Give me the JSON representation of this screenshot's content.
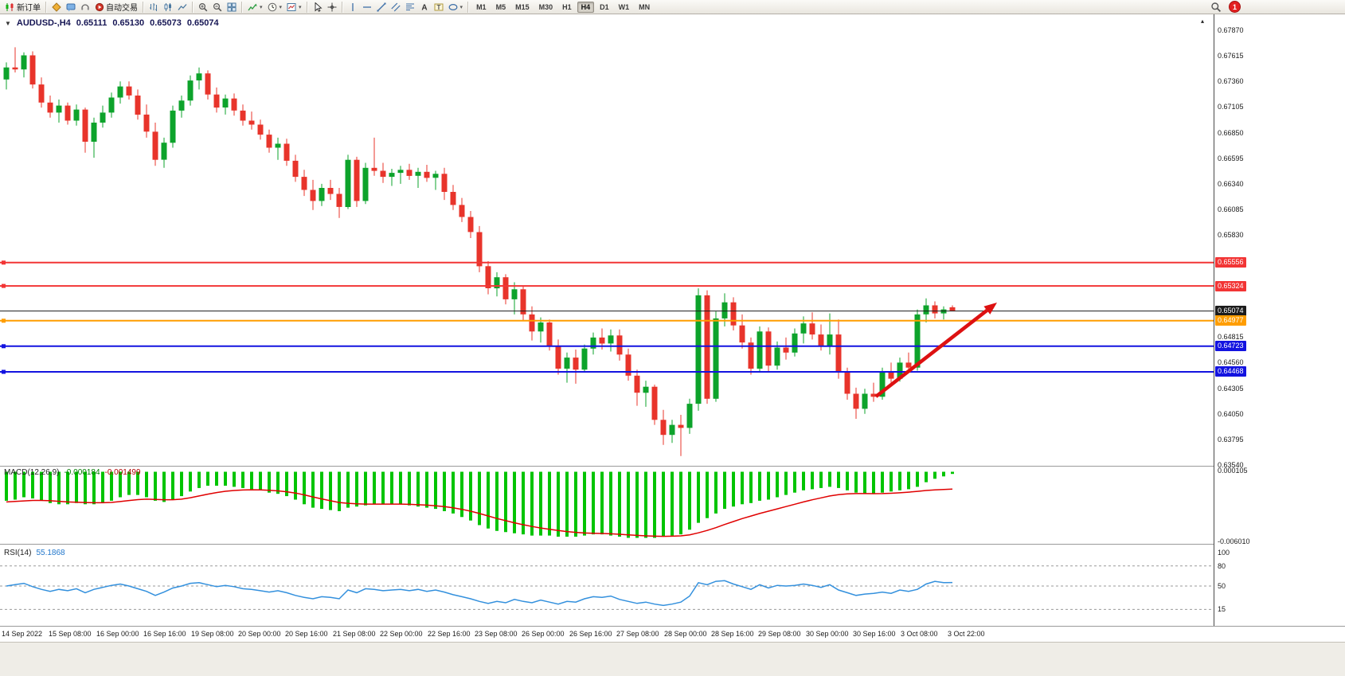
{
  "toolbar": {
    "items": [
      {
        "type": "button",
        "name": "new-order",
        "icon": "new-order",
        "label": "新订单"
      },
      {
        "type": "sep"
      },
      {
        "type": "button",
        "name": "mql5-community",
        "icon": "diamond"
      },
      {
        "type": "button",
        "name": "messages",
        "icon": "bubble"
      },
      {
        "type": "button",
        "name": "support",
        "icon": "headset"
      },
      {
        "type": "button",
        "name": "autotrading",
        "icon": "autotrade",
        "label": "自动交易"
      },
      {
        "type": "sep"
      },
      {
        "type": "button",
        "name": "chart-bars",
        "icon": "bars"
      },
      {
        "type": "button",
        "name": "chart-candles",
        "icon": "candles"
      },
      {
        "type": "button",
        "name": "chart-line",
        "icon": "line"
      },
      {
        "type": "sep"
      },
      {
        "type": "button",
        "name": "zoom-in",
        "icon": "zoom-in"
      },
      {
        "type": "button",
        "name": "zoom-out",
        "icon": "zoom-out"
      },
      {
        "type": "button",
        "name": "tile-windows",
        "icon": "tile"
      },
      {
        "type": "sep"
      },
      {
        "type": "button",
        "name": "indicators",
        "icon": "indicator",
        "dropdown": true
      },
      {
        "type": "button",
        "name": "periods",
        "icon": "clock",
        "dropdown": true
      },
      {
        "type": "button",
        "name": "templates",
        "icon": "template",
        "dropdown": true
      },
      {
        "type": "sep"
      },
      {
        "type": "button",
        "name": "cursor",
        "icon": "cursor"
      },
      {
        "type": "button",
        "name": "crosshair",
        "icon": "crosshair"
      },
      {
        "type": "sep"
      },
      {
        "type": "button",
        "name": "vertical-line",
        "icon": "vline"
      },
      {
        "type": "button",
        "name": "horizontal-line",
        "icon": "hline"
      },
      {
        "type": "button",
        "name": "trendline",
        "icon": "trendline"
      },
      {
        "type": "button",
        "name": "equidistant-channel",
        "icon": "channel"
      },
      {
        "type": "button",
        "name": "fibonacci",
        "icon": "fibo"
      },
      {
        "type": "button",
        "name": "text",
        "icon": "text-a"
      },
      {
        "type": "button",
        "name": "text-label",
        "icon": "text-t"
      },
      {
        "type": "button",
        "name": "shapes",
        "icon": "shapes",
        "dropdown": true
      },
      {
        "type": "sep"
      }
    ],
    "timeframes": [
      "M1",
      "M5",
      "M15",
      "M30",
      "H1",
      "H4",
      "D1",
      "W1",
      "MN"
    ],
    "active_timeframe": "H4",
    "dropdown_glyph": "▾",
    "notification_badge": "1"
  },
  "chart_header": {
    "collapse_icon": "▼",
    "symbol_period": "AUDUSD-,H4",
    "open": "0.65111",
    "high": "0.65130",
    "low": "0.65073",
    "close": "0.65074",
    "autoscroll_icon": "▴"
  },
  "price_axis": {
    "ticks": [
      "0.67870",
      "0.67615",
      "0.67360",
      "0.67105",
      "0.66850",
      "0.66595",
      "0.66340",
      "0.66085",
      "0.65830",
      "0.64815",
      "0.64560",
      "0.64305",
      "0.64050",
      "0.63795",
      "0.63540"
    ]
  },
  "time_axis": {
    "labels": [
      "14 Sep 2022",
      "15 Sep 08:00",
      "16 Sep 00:00",
      "16 Sep 16:00",
      "19 Sep 08:00",
      "20 Sep 00:00",
      "20 Sep 16:00",
      "21 Sep 08:00",
      "22 Sep 00:00",
      "22 Sep 16:00",
      "23 Sep 08:00",
      "26 Sep 00:00",
      "26 Sep 16:00",
      "27 Sep 08:00",
      "28 Sep 00:00",
      "28 Sep 16:00",
      "29 Sep 08:00",
      "30 Sep 00:00",
      "30 Sep 16:00",
      "3 Oct 08:00",
      "3 Oct 22:00"
    ]
  },
  "chart_data": {
    "type": "candlestick",
    "symbol": "AUDUSD-",
    "timeframe": "H4",
    "title": "AUDUSD-,H4 0.65111 0.65130 0.65073 0.65074",
    "ylim": [
      0.6354,
      0.6787
    ],
    "bull_color": "#0da32b",
    "bear_color": "#e8342b",
    "candles": [
      [
        0.6738,
        0.6755,
        0.6728,
        0.675
      ],
      [
        0.675,
        0.677,
        0.6745,
        0.6748
      ],
      [
        0.6748,
        0.6765,
        0.674,
        0.6762
      ],
      [
        0.6762,
        0.6766,
        0.6729,
        0.6733
      ],
      [
        0.6733,
        0.674,
        0.671,
        0.6715
      ],
      [
        0.6715,
        0.6722,
        0.67,
        0.6705
      ],
      [
        0.6705,
        0.6718,
        0.6695,
        0.6712
      ],
      [
        0.6712,
        0.6715,
        0.6693,
        0.6697
      ],
      [
        0.6697,
        0.6713,
        0.6692,
        0.6708
      ],
      [
        0.6708,
        0.671,
        0.6665,
        0.6676
      ],
      [
        0.6676,
        0.67,
        0.666,
        0.6695
      ],
      [
        0.6695,
        0.6712,
        0.669,
        0.6705
      ],
      [
        0.6705,
        0.6725,
        0.67,
        0.672
      ],
      [
        0.672,
        0.6736,
        0.6714,
        0.6731
      ],
      [
        0.6731,
        0.6736,
        0.6718,
        0.6722
      ],
      [
        0.6722,
        0.6728,
        0.6698,
        0.6703
      ],
      [
        0.6703,
        0.6713,
        0.668,
        0.6686
      ],
      [
        0.6686,
        0.6695,
        0.6652,
        0.6658
      ],
      [
        0.6658,
        0.668,
        0.665,
        0.6675
      ],
      [
        0.6675,
        0.6712,
        0.667,
        0.6707
      ],
      [
        0.6707,
        0.6722,
        0.67,
        0.6717
      ],
      [
        0.6717,
        0.6742,
        0.6712,
        0.6737
      ],
      [
        0.6737,
        0.675,
        0.6728,
        0.6744
      ],
      [
        0.6744,
        0.6747,
        0.6718,
        0.6723
      ],
      [
        0.6723,
        0.673,
        0.6705,
        0.671
      ],
      [
        0.671,
        0.6723,
        0.6703,
        0.6719
      ],
      [
        0.6719,
        0.6724,
        0.6702,
        0.6707
      ],
      [
        0.6707,
        0.6713,
        0.6692,
        0.6697
      ],
      [
        0.6697,
        0.6706,
        0.6688,
        0.6693
      ],
      [
        0.6693,
        0.6698,
        0.6678,
        0.6683
      ],
      [
        0.6683,
        0.6688,
        0.6665,
        0.667
      ],
      [
        0.667,
        0.668,
        0.6658,
        0.6674
      ],
      [
        0.6674,
        0.6679,
        0.6652,
        0.6657
      ],
      [
        0.6657,
        0.6663,
        0.6636,
        0.6641
      ],
      [
        0.6641,
        0.6648,
        0.6622,
        0.6628
      ],
      [
        0.6628,
        0.6638,
        0.6608,
        0.6617
      ],
      [
        0.6617,
        0.6634,
        0.6612,
        0.663
      ],
      [
        0.663,
        0.6638,
        0.6618,
        0.6624
      ],
      [
        0.6624,
        0.663,
        0.66,
        0.6611
      ],
      [
        0.6611,
        0.6663,
        0.6609,
        0.6658
      ],
      [
        0.6658,
        0.6661,
        0.6611,
        0.6617
      ],
      [
        0.6617,
        0.6655,
        0.6614,
        0.665
      ],
      [
        0.665,
        0.668,
        0.6642,
        0.6647
      ],
      [
        0.6647,
        0.6655,
        0.6635,
        0.6641
      ],
      [
        0.6641,
        0.6649,
        0.6632,
        0.6645
      ],
      [
        0.6645,
        0.6652,
        0.6634,
        0.6648
      ],
      [
        0.6648,
        0.6654,
        0.6638,
        0.6642
      ],
      [
        0.6642,
        0.665,
        0.663,
        0.6646
      ],
      [
        0.6646,
        0.6653,
        0.6636,
        0.664
      ],
      [
        0.664,
        0.6647,
        0.6628,
        0.6644
      ],
      [
        0.6644,
        0.665,
        0.6618,
        0.6626
      ],
      [
        0.6626,
        0.6633,
        0.6608,
        0.6613
      ],
      [
        0.6613,
        0.662,
        0.6596,
        0.6601
      ],
      [
        0.6601,
        0.6607,
        0.658,
        0.6586
      ],
      [
        0.6586,
        0.6592,
        0.6546,
        0.6552
      ],
      [
        0.6552,
        0.6557,
        0.6524,
        0.653
      ],
      [
        0.653,
        0.6546,
        0.6522,
        0.6541
      ],
      [
        0.6541,
        0.6544,
        0.6514,
        0.6519
      ],
      [
        0.6519,
        0.6536,
        0.6504,
        0.6529
      ],
      [
        0.6529,
        0.6532,
        0.6498,
        0.6504
      ],
      [
        0.6504,
        0.6512,
        0.6478,
        0.6487
      ],
      [
        0.6487,
        0.6501,
        0.6476,
        0.6496
      ],
      [
        0.6496,
        0.6499,
        0.6468,
        0.6473
      ],
      [
        0.6473,
        0.6479,
        0.6444,
        0.645
      ],
      [
        0.645,
        0.6466,
        0.6436,
        0.6461
      ],
      [
        0.6461,
        0.6469,
        0.6435,
        0.6449
      ],
      [
        0.6449,
        0.6474,
        0.6446,
        0.647
      ],
      [
        0.647,
        0.6486,
        0.6464,
        0.6481
      ],
      [
        0.6481,
        0.649,
        0.6469,
        0.6475
      ],
      [
        0.6475,
        0.6489,
        0.6467,
        0.6483
      ],
      [
        0.6483,
        0.6489,
        0.6458,
        0.6464
      ],
      [
        0.6464,
        0.647,
        0.6438,
        0.6443
      ],
      [
        0.6443,
        0.6449,
        0.6413,
        0.6426
      ],
      [
        0.6426,
        0.6438,
        0.6412,
        0.6432
      ],
      [
        0.6432,
        0.6434,
        0.6394,
        0.6399
      ],
      [
        0.6399,
        0.6409,
        0.6374,
        0.6384
      ],
      [
        0.6384,
        0.6399,
        0.6376,
        0.6394
      ],
      [
        0.6394,
        0.6404,
        0.6363,
        0.6391
      ],
      [
        0.6391,
        0.642,
        0.6385,
        0.6415
      ],
      [
        0.6415,
        0.653,
        0.6408,
        0.6523
      ],
      [
        0.6523,
        0.6528,
        0.6415,
        0.642
      ],
      [
        0.642,
        0.6507,
        0.6417,
        0.65
      ],
      [
        0.65,
        0.6525,
        0.6492,
        0.6516
      ],
      [
        0.6516,
        0.6521,
        0.6488,
        0.6493
      ],
      [
        0.6493,
        0.6504,
        0.647,
        0.6476
      ],
      [
        0.6476,
        0.6481,
        0.6444,
        0.645
      ],
      [
        0.645,
        0.6492,
        0.6446,
        0.6487
      ],
      [
        0.6487,
        0.6491,
        0.6446,
        0.6453
      ],
      [
        0.6453,
        0.6477,
        0.6449,
        0.6471
      ],
      [
        0.6471,
        0.6481,
        0.6459,
        0.6466
      ],
      [
        0.6466,
        0.649,
        0.6462,
        0.6485
      ],
      [
        0.6485,
        0.6502,
        0.6475,
        0.6495
      ],
      [
        0.6495,
        0.6506,
        0.6479,
        0.6484
      ],
      [
        0.6484,
        0.6494,
        0.6468,
        0.6473
      ],
      [
        0.6473,
        0.6505,
        0.6464,
        0.6484
      ],
      [
        0.6484,
        0.6499,
        0.644,
        0.6446
      ],
      [
        0.6446,
        0.6451,
        0.6419,
        0.6425
      ],
      [
        0.6425,
        0.6431,
        0.64,
        0.641
      ],
      [
        0.641,
        0.643,
        0.6405,
        0.6425
      ],
      [
        0.6425,
        0.6436,
        0.6417,
        0.6422
      ],
      [
        0.6422,
        0.6451,
        0.6419,
        0.6446
      ],
      [
        0.6446,
        0.6456,
        0.6434,
        0.644
      ],
      [
        0.644,
        0.6461,
        0.6437,
        0.6456
      ],
      [
        0.6456,
        0.6466,
        0.6446,
        0.6451
      ],
      [
        0.6451,
        0.6509,
        0.6448,
        0.6504
      ],
      [
        0.6504,
        0.652,
        0.6496,
        0.6513
      ],
      [
        0.6513,
        0.6517,
        0.65,
        0.6505
      ],
      [
        0.6505,
        0.6512,
        0.6499,
        0.6509
      ],
      [
        0.65111,
        0.6513,
        0.65073,
        0.65074
      ]
    ],
    "price_levels": [
      {
        "name": "resistance-line-1",
        "price": 0.65556,
        "label": "0.65556",
        "color": "#f23535",
        "style": "solid"
      },
      {
        "name": "resistance-line-2",
        "price": 0.65324,
        "label": "0.65324",
        "color": "#f23535",
        "style": "solid"
      },
      {
        "name": "last-price-line",
        "price": 0.65074,
        "label": "0.65074",
        "color": "#1c1c1c",
        "style": "solid",
        "role": "last-price"
      },
      {
        "name": "pivot-line-orange",
        "price": 0.64977,
        "label": "0.64977",
        "color": "#ff9d00",
        "style": "solid"
      },
      {
        "name": "support-line-1",
        "price": 0.64723,
        "label": "0.64723",
        "color": "#1313e0",
        "style": "solid"
      },
      {
        "name": "support-line-2",
        "price": 0.64468,
        "label": "0.64468",
        "color": "#1313e0",
        "style": "solid"
      }
    ],
    "annotations": [
      {
        "type": "arrow",
        "color": "#dd1111",
        "from": [
          1100,
          480
        ],
        "to": [
          1252,
          362
        ]
      }
    ],
    "macd": {
      "title": "MACD(12,26,9)",
      "value_display": "-0.000184",
      "signal_display": "-0.001499",
      "scale_top": "0.000105",
      "scale_bottom": "-0.006010",
      "unit": 0.0001,
      "hist_color": "#00c400",
      "signal_color": "#e00000",
      "histogram": [
        -25,
        -24,
        -22,
        -23,
        -25,
        -27,
        -28,
        -28,
        -27,
        -28,
        -28,
        -27,
        -25,
        -22,
        -20,
        -20,
        -22,
        -25,
        -26,
        -24,
        -21,
        -17,
        -14,
        -12,
        -12,
        -12,
        -13,
        -14,
        -15,
        -16,
        -18,
        -19,
        -21,
        -24,
        -28,
        -31,
        -32,
        -33,
        -34,
        -31,
        -30,
        -29,
        -28,
        -28,
        -28,
        -28,
        -29,
        -30,
        -31,
        -32,
        -34,
        -36,
        -39,
        -42,
        -46,
        -49,
        -51,
        -52,
        -53,
        -54,
        -55,
        -55,
        -55,
        -56,
        -56,
        -56,
        -55,
        -54,
        -54,
        -55,
        -56,
        -57,
        -57,
        -57,
        -57,
        -56,
        -55,
        -54,
        -50,
        -44,
        -40,
        -36,
        -32,
        -30,
        -28,
        -27,
        -25,
        -24,
        -22,
        -20,
        -18,
        -16,
        -15,
        -14,
        -13,
        -14,
        -16,
        -18,
        -19,
        -19,
        -18,
        -17,
        -16,
        -15,
        -13,
        -9,
        -6,
        -4,
        -1.84
      ],
      "signal": [
        -26,
        -25.6,
        -25.1,
        -24.7,
        -24.7,
        -25,
        -25.5,
        -26,
        -26.2,
        -26.5,
        -26.7,
        -26.7,
        -26.4,
        -25.7,
        -24.8,
        -24,
        -23.6,
        -23.8,
        -24.1,
        -24.1,
        -23.6,
        -22.4,
        -20.9,
        -19.3,
        -17.9,
        -16.8,
        -16.1,
        -15.7,
        -15.5,
        -15.6,
        -16,
        -16.5,
        -17.2,
        -18.3,
        -19.9,
        -21.7,
        -23.4,
        -25,
        -26.5,
        -27.2,
        -27.7,
        -27.9,
        -27.9,
        -27.9,
        -27.9,
        -27.9,
        -28.1,
        -28.4,
        -28.8,
        -29.3,
        -30.1,
        -31.1,
        -32.4,
        -34,
        -36,
        -38.1,
        -40.3,
        -42.2,
        -44,
        -45.7,
        -47.2,
        -48.5,
        -49.6,
        -50.7,
        -51.6,
        -52.3,
        -52.8,
        -53,
        -53.2,
        -53.5,
        -53.9,
        -54.4,
        -54.9,
        -55.3,
        -55.6,
        -55.7,
        -55.6,
        -55.3,
        -54.4,
        -52.7,
        -50.6,
        -48.2,
        -45.5,
        -42.9,
        -40.4,
        -38.2,
        -36,
        -34,
        -32,
        -30,
        -28,
        -26,
        -24.2,
        -22.5,
        -20.9,
        -19.7,
        -19,
        -18.8,
        -18.8,
        -18.9,
        -18.8,
        -18.5,
        -18.1,
        -17.6,
        -16.9,
        -16.1,
        -15.6,
        -15.2,
        -14.99
      ]
    },
    "rsi": {
      "title": "RSI(14)",
      "value_display": "55.1868",
      "line_color": "#3390dd",
      "levels": [
        80,
        50,
        15
      ],
      "axis_labels": [
        "100",
        "80",
        "50",
        "15"
      ],
      "axis_values": [
        100,
        80,
        50,
        15
      ],
      "values": [
        50,
        52,
        54,
        49,
        45,
        42,
        45,
        43,
        46,
        40,
        45,
        48,
        51,
        53,
        50,
        46,
        42,
        36,
        41,
        47,
        50,
        54,
        55,
        52,
        49,
        51,
        49,
        46,
        45,
        43,
        41,
        43,
        40,
        36,
        33,
        31,
        34,
        33,
        31,
        44,
        40,
        46,
        45,
        43,
        44,
        45,
        43,
        45,
        42,
        44,
        41,
        37,
        34,
        31,
        27,
        24,
        27,
        25,
        30,
        27,
        25,
        29,
        26,
        23,
        27,
        26,
        31,
        34,
        33,
        35,
        30,
        27,
        24,
        26,
        23,
        21,
        23,
        26,
        35,
        55,
        52,
        57,
        58,
        53,
        49,
        45,
        52,
        47,
        51,
        50,
        51,
        53,
        51,
        48,
        52,
        44,
        40,
        36,
        38,
        39,
        41,
        39,
        44,
        42,
        45,
        53,
        57,
        55,
        55.1868
      ]
    }
  }
}
